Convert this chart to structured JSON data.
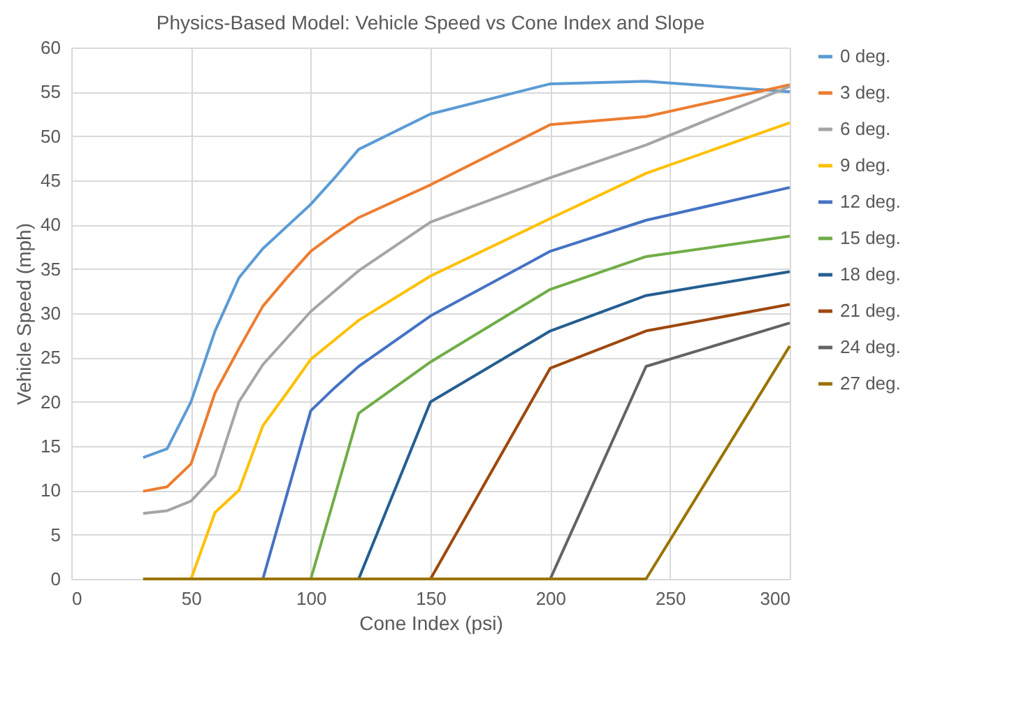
{
  "chart_data": {
    "type": "line",
    "title": "Physics-Based Model: Vehicle Speed vs Cone Index and Slope",
    "xlabel": "Cone Index (psi)",
    "ylabel": "Vehicle Speed (mph)",
    "x": [
      30,
      40,
      50,
      60,
      70,
      80,
      90,
      100,
      110,
      120,
      150,
      200,
      240,
      300
    ],
    "series": [
      {
        "name": "0 deg.",
        "color": "#5b9bd5",
        "values": [
          13.7,
          14.7,
          20,
          28,
          34,
          37.3,
          39.8,
          42.3,
          45.3,
          48.5,
          52.5,
          55.9,
          56.2,
          55
        ]
      },
      {
        "name": "3 deg.",
        "color": "#ed7d31",
        "values": [
          9.9,
          10.4,
          13,
          21,
          26,
          30.8,
          34,
          37,
          39,
          40.8,
          44.5,
          51.3,
          52.2,
          55.8
        ]
      },
      {
        "name": "6 deg.",
        "color": "#a5a5a5",
        "values": [
          7.4,
          7.7,
          8.8,
          11.7,
          20,
          24.2,
          27.2,
          30.2,
          32.5,
          34.8,
          40.3,
          45.3,
          49,
          55.6
        ]
      },
      {
        "name": "9 deg.",
        "color": "#ffc000",
        "values": [
          null,
          null,
          0,
          7.5,
          10,
          17.3,
          21,
          24.8,
          27,
          29.2,
          34.2,
          40.7,
          45.8,
          51.5
        ]
      },
      {
        "name": "12 deg.",
        "color": "#4472c4",
        "values": [
          null,
          null,
          null,
          null,
          null,
          0,
          9.5,
          19,
          21.6,
          24,
          29.7,
          37,
          40.5,
          44.2
        ]
      },
      {
        "name": "15 deg.",
        "color": "#70ad47",
        "values": [
          null,
          null,
          null,
          null,
          null,
          null,
          null,
          0,
          9.3,
          18.7,
          24.5,
          32.7,
          36.4,
          38.7
        ]
      },
      {
        "name": "18 deg.",
        "color": "#255e91",
        "values": [
          null,
          null,
          null,
          null,
          null,
          null,
          null,
          null,
          null,
          0,
          20,
          28,
          32,
          34.7
        ]
      },
      {
        "name": "21 deg.",
        "color": "#9e480e",
        "values": [
          null,
          null,
          null,
          null,
          null,
          null,
          null,
          null,
          null,
          null,
          0,
          23.8,
          28,
          31
        ]
      },
      {
        "name": "24 deg.",
        "color": "#636363",
        "values": [
          null,
          null,
          null,
          null,
          null,
          null,
          null,
          null,
          null,
          null,
          null,
          0,
          24,
          28.9
        ]
      },
      {
        "name": "27 deg.",
        "color": "#997300",
        "values": [
          0,
          0,
          0,
          0,
          0,
          0,
          0,
          0,
          0,
          0,
          0,
          0,
          0,
          26.3
        ]
      }
    ],
    "xlim": [
      0,
      300
    ],
    "xticks": [
      0,
      50,
      100,
      150,
      200,
      250,
      300
    ],
    "ylim": [
      0,
      60
    ],
    "yticks": [
      0,
      5,
      10,
      15,
      20,
      25,
      30,
      35,
      40,
      45,
      50,
      55,
      60
    ],
    "grid": true,
    "legend": "right",
    "marker": "none",
    "line_style": "solid"
  }
}
